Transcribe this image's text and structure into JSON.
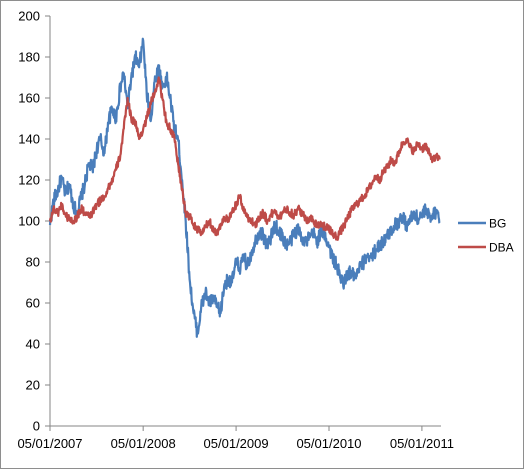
{
  "chart_data": {
    "type": "line",
    "title": "",
    "xlabel": "",
    "ylabel": "",
    "ylim": [
      0,
      200
    ],
    "yticks": [
      0,
      20,
      40,
      60,
      80,
      100,
      120,
      140,
      160,
      180,
      200
    ],
    "xlim": [
      "2007-05-01",
      "2011-07-15"
    ],
    "xticks": [
      {
        "date": "2007-05-01",
        "label": "05/01/2007"
      },
      {
        "date": "2008-05-01",
        "label": "05/01/2008"
      },
      {
        "date": "2009-05-01",
        "label": "05/01/2009"
      },
      {
        "date": "2010-05-01",
        "label": "05/01/2010"
      },
      {
        "date": "2011-05-01",
        "label": "05/01/2011"
      }
    ],
    "grid": false,
    "legend_position": "right",
    "series": [
      {
        "name": "BG",
        "color": "#4a7ebb",
        "points": [
          [
            "2007-05-01",
            98
          ],
          [
            "2007-05-15",
            110
          ],
          [
            "2007-06-01",
            115
          ],
          [
            "2007-06-15",
            121
          ],
          [
            "2007-07-01",
            113
          ],
          [
            "2007-07-15",
            118
          ],
          [
            "2007-08-01",
            108
          ],
          [
            "2007-08-15",
            104
          ],
          [
            "2007-09-01",
            112
          ],
          [
            "2007-09-15",
            118
          ],
          [
            "2007-10-01",
            128
          ],
          [
            "2007-10-15",
            125
          ],
          [
            "2007-11-01",
            135
          ],
          [
            "2007-11-15",
            140
          ],
          [
            "2007-12-01",
            133
          ],
          [
            "2007-12-15",
            148
          ],
          [
            "2008-01-01",
            155
          ],
          [
            "2008-01-15",
            150
          ],
          [
            "2008-02-01",
            165
          ],
          [
            "2008-02-15",
            172
          ],
          [
            "2008-03-01",
            155
          ],
          [
            "2008-03-15",
            170
          ],
          [
            "2008-04-01",
            180
          ],
          [
            "2008-04-15",
            175
          ],
          [
            "2008-05-01",
            188
          ],
          [
            "2008-05-15",
            162
          ],
          [
            "2008-06-01",
            150
          ],
          [
            "2008-06-15",
            168
          ],
          [
            "2008-07-01",
            175
          ],
          [
            "2008-07-15",
            165
          ],
          [
            "2008-08-01",
            170
          ],
          [
            "2008-08-15",
            160
          ],
          [
            "2008-09-01",
            145
          ],
          [
            "2008-09-15",
            140
          ],
          [
            "2008-10-01",
            120
          ],
          [
            "2008-10-15",
            100
          ],
          [
            "2008-11-01",
            70
          ],
          [
            "2008-11-15",
            55
          ],
          [
            "2008-12-01",
            45
          ],
          [
            "2008-12-15",
            58
          ],
          [
            "2009-01-01",
            65
          ],
          [
            "2009-01-15",
            60
          ],
          [
            "2009-02-01",
            62
          ],
          [
            "2009-02-15",
            58
          ],
          [
            "2009-03-01",
            55
          ],
          [
            "2009-03-15",
            68
          ],
          [
            "2009-04-01",
            72
          ],
          [
            "2009-04-15",
            70
          ],
          [
            "2009-05-01",
            80
          ],
          [
            "2009-05-15",
            77
          ],
          [
            "2009-06-01",
            82
          ],
          [
            "2009-06-15",
            78
          ],
          [
            "2009-07-01",
            85
          ],
          [
            "2009-07-15",
            90
          ],
          [
            "2009-08-01",
            95
          ],
          [
            "2009-08-15",
            93
          ],
          [
            "2009-09-01",
            88
          ],
          [
            "2009-09-15",
            92
          ],
          [
            "2009-10-01",
            98
          ],
          [
            "2009-10-15",
            95
          ],
          [
            "2009-11-01",
            92
          ],
          [
            "2009-11-15",
            88
          ],
          [
            "2009-12-01",
            90
          ],
          [
            "2009-12-15",
            94
          ],
          [
            "2010-01-01",
            96
          ],
          [
            "2010-01-15",
            92
          ],
          [
            "2010-02-01",
            90
          ],
          [
            "2010-02-15",
            92
          ],
          [
            "2010-03-01",
            94
          ],
          [
            "2010-03-15",
            90
          ],
          [
            "2010-04-01",
            95
          ],
          [
            "2010-04-15",
            93
          ],
          [
            "2010-05-01",
            88
          ],
          [
            "2010-05-15",
            82
          ],
          [
            "2010-06-01",
            78
          ],
          [
            "2010-06-15",
            72
          ],
          [
            "2010-07-01",
            70
          ],
          [
            "2010-07-15",
            75
          ],
          [
            "2010-08-01",
            74
          ],
          [
            "2010-08-15",
            72
          ],
          [
            "2010-09-01",
            78
          ],
          [
            "2010-09-15",
            80
          ],
          [
            "2010-10-01",
            84
          ],
          [
            "2010-10-15",
            82
          ],
          [
            "2010-11-01",
            86
          ],
          [
            "2010-11-15",
            88
          ],
          [
            "2010-12-01",
            90
          ],
          [
            "2010-12-15",
            92
          ],
          [
            "2011-01-01",
            96
          ],
          [
            "2011-01-15",
            98
          ],
          [
            "2011-02-01",
            100
          ],
          [
            "2011-02-15",
            102
          ],
          [
            "2011-03-01",
            98
          ],
          [
            "2011-03-15",
            100
          ],
          [
            "2011-04-01",
            104
          ],
          [
            "2011-04-15",
            101
          ],
          [
            "2011-05-01",
            103
          ],
          [
            "2011-05-15",
            105
          ],
          [
            "2011-06-01",
            102
          ],
          [
            "2011-06-15",
            104
          ],
          [
            "2011-07-01",
            105
          ],
          [
            "2011-07-10",
            99
          ]
        ]
      },
      {
        "name": "DBA",
        "color": "#be4b48",
        "points": [
          [
            "2007-05-01",
            100
          ],
          [
            "2007-05-15",
            106
          ],
          [
            "2007-06-01",
            104
          ],
          [
            "2007-06-15",
            108
          ],
          [
            "2007-07-01",
            103
          ],
          [
            "2007-07-15",
            101
          ],
          [
            "2007-08-01",
            100
          ],
          [
            "2007-08-15",
            102
          ],
          [
            "2007-09-01",
            106
          ],
          [
            "2007-09-15",
            104
          ],
          [
            "2007-10-01",
            102
          ],
          [
            "2007-10-15",
            104
          ],
          [
            "2007-11-01",
            108
          ],
          [
            "2007-11-15",
            110
          ],
          [
            "2007-12-01",
            112
          ],
          [
            "2007-12-15",
            116
          ],
          [
            "2008-01-01",
            120
          ],
          [
            "2008-01-15",
            125
          ],
          [
            "2008-02-01",
            132
          ],
          [
            "2008-02-15",
            145
          ],
          [
            "2008-03-01",
            160
          ],
          [
            "2008-03-15",
            150
          ],
          [
            "2008-04-01",
            148
          ],
          [
            "2008-04-15",
            140
          ],
          [
            "2008-05-01",
            145
          ],
          [
            "2008-05-15",
            150
          ],
          [
            "2008-06-01",
            158
          ],
          [
            "2008-06-15",
            162
          ],
          [
            "2008-07-01",
            170
          ],
          [
            "2008-07-15",
            160
          ],
          [
            "2008-08-01",
            148
          ],
          [
            "2008-08-15",
            145
          ],
          [
            "2008-09-01",
            140
          ],
          [
            "2008-09-15",
            128
          ],
          [
            "2008-10-01",
            115
          ],
          [
            "2008-10-15",
            104
          ],
          [
            "2008-11-01",
            102
          ],
          [
            "2008-11-15",
            98
          ],
          [
            "2008-12-01",
            96
          ],
          [
            "2008-12-15",
            94
          ],
          [
            "2009-01-01",
            97
          ],
          [
            "2009-01-15",
            100
          ],
          [
            "2009-02-01",
            96
          ],
          [
            "2009-02-15",
            94
          ],
          [
            "2009-03-01",
            98
          ],
          [
            "2009-03-15",
            102
          ],
          [
            "2009-04-01",
            100
          ],
          [
            "2009-04-15",
            104
          ],
          [
            "2009-05-01",
            108
          ],
          [
            "2009-05-15",
            112
          ],
          [
            "2009-06-01",
            105
          ],
          [
            "2009-06-15",
            102
          ],
          [
            "2009-07-01",
            100
          ],
          [
            "2009-07-15",
            98
          ],
          [
            "2009-08-01",
            102
          ],
          [
            "2009-08-15",
            104
          ],
          [
            "2009-09-01",
            100
          ],
          [
            "2009-09-15",
            103
          ],
          [
            "2009-10-01",
            105
          ],
          [
            "2009-10-15",
            102
          ],
          [
            "2009-11-01",
            104
          ],
          [
            "2009-11-15",
            106
          ],
          [
            "2009-12-01",
            104
          ],
          [
            "2009-12-15",
            103
          ],
          [
            "2010-01-01",
            106
          ],
          [
            "2010-01-15",
            104
          ],
          [
            "2010-02-01",
            100
          ],
          [
            "2010-02-15",
            102
          ],
          [
            "2010-03-01",
            100
          ],
          [
            "2010-03-15",
            98
          ],
          [
            "2010-04-01",
            99
          ],
          [
            "2010-04-15",
            97
          ],
          [
            "2010-05-01",
            96
          ],
          [
            "2010-05-15",
            94
          ],
          [
            "2010-06-01",
            92
          ],
          [
            "2010-06-15",
            95
          ],
          [
            "2010-07-01",
            98
          ],
          [
            "2010-07-15",
            102
          ],
          [
            "2010-08-01",
            106
          ],
          [
            "2010-08-15",
            108
          ],
          [
            "2010-09-01",
            110
          ],
          [
            "2010-09-15",
            112
          ],
          [
            "2010-10-01",
            115
          ],
          [
            "2010-10-15",
            118
          ],
          [
            "2010-11-01",
            122
          ],
          [
            "2010-11-15",
            120
          ],
          [
            "2010-12-01",
            124
          ],
          [
            "2010-12-15",
            126
          ],
          [
            "2011-01-01",
            130
          ],
          [
            "2011-01-15",
            128
          ],
          [
            "2011-02-01",
            134
          ],
          [
            "2011-02-15",
            138
          ],
          [
            "2011-03-01",
            140
          ],
          [
            "2011-03-15",
            136
          ],
          [
            "2011-04-01",
            134
          ],
          [
            "2011-04-15",
            138
          ],
          [
            "2011-05-01",
            135
          ],
          [
            "2011-05-15",
            137
          ],
          [
            "2011-06-01",
            132
          ],
          [
            "2011-06-15",
            130
          ],
          [
            "2011-07-01",
            131
          ],
          [
            "2011-07-10",
            130
          ]
        ]
      }
    ]
  }
}
